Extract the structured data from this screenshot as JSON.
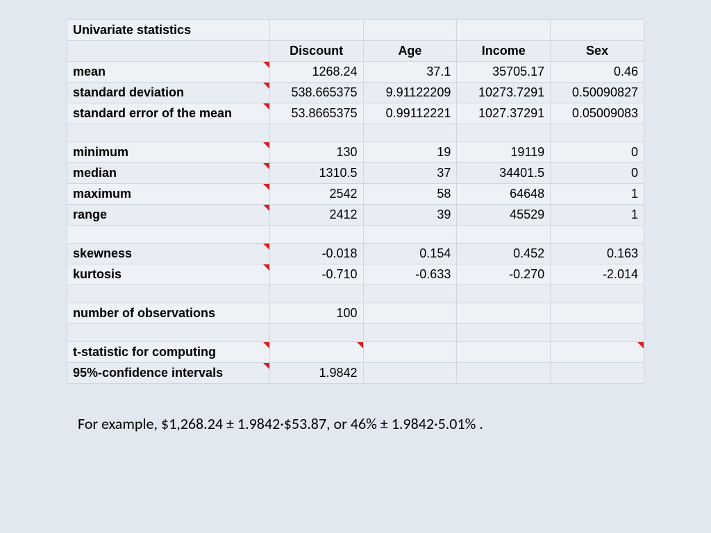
{
  "table": {
    "title": "Univariate statistics",
    "columns": [
      "Discount",
      "Age",
      "Income",
      "Sex"
    ],
    "rows": {
      "mean": {
        "label": "mean",
        "marker": true,
        "vals": [
          "1268.24",
          "37.1",
          "35705.17",
          "0.46"
        ]
      },
      "stddev": {
        "label": "standard deviation",
        "marker": true,
        "vals": [
          "538.665375",
          "9.91122209",
          "10273.7291",
          "0.50090827"
        ]
      },
      "sem": {
        "label": "standard error of the mean",
        "marker": true,
        "vals": [
          "53.8665375",
          "0.99112221",
          "1027.37291",
          "0.05009083"
        ]
      },
      "blank1": {
        "label": "",
        "marker": false,
        "vals": [
          "",
          "",
          "",
          ""
        ]
      },
      "min": {
        "label": "minimum",
        "marker": true,
        "vals": [
          "130",
          "19",
          "19119",
          "0"
        ]
      },
      "median": {
        "label": "median",
        "marker": true,
        "vals": [
          "1310.5",
          "37",
          "34401.5",
          "0"
        ]
      },
      "max": {
        "label": "maximum",
        "marker": true,
        "vals": [
          "2542",
          "58",
          "64648",
          "1"
        ]
      },
      "range": {
        "label": "range",
        "marker": true,
        "vals": [
          "2412",
          "39",
          "45529",
          "1"
        ]
      },
      "blank2": {
        "label": "",
        "marker": false,
        "vals": [
          "",
          "",
          "",
          ""
        ]
      },
      "skew": {
        "label": "skewness",
        "marker": true,
        "vals": [
          "-0.018",
          "0.154",
          "0.452",
          "0.163"
        ]
      },
      "kurt": {
        "label": "kurtosis",
        "marker": true,
        "vals": [
          "-0.710",
          "-0.633",
          "-0.270",
          "-2.014"
        ]
      },
      "blank3": {
        "label": "",
        "marker": false,
        "vals": [
          "",
          "",
          "",
          ""
        ]
      },
      "nobs": {
        "label": "number of observations",
        "marker": false,
        "vals": [
          "100",
          "",
          "",
          ""
        ]
      },
      "blank4": {
        "label": "",
        "marker": false,
        "vals": [
          "",
          "",
          "",
          ""
        ]
      },
      "tstat1": {
        "label": "t-statistic for computing",
        "marker": true,
        "vals": [
          "",
          "",
          "",
          ""
        ]
      },
      "tstat2": {
        "label": "95%-confidence intervals",
        "marker": true,
        "vals": [
          "1.9842",
          "",
          "",
          ""
        ]
      }
    },
    "row_order": [
      "mean",
      "stddev",
      "sem",
      "blank1",
      "min",
      "median",
      "max",
      "range",
      "blank2",
      "skew",
      "kurt",
      "blank3",
      "nobs",
      "blank4",
      "tstat1",
      "tstat2"
    ]
  },
  "example_text": "For example, $1,268.24 ± 1.9842·$53.87, or 46% ± 1.9842·5.01% .",
  "colors": {
    "page_bg": "#e2e8ef",
    "row_odd": "#eef2f6",
    "row_even": "#e8edf3",
    "border": "#d0d6dd",
    "marker": "#d62020",
    "text": "#000000"
  },
  "fonts": {
    "table_family": "Arial",
    "table_size_pt": 14,
    "example_family": "Calibri",
    "example_size_pt": 17
  }
}
